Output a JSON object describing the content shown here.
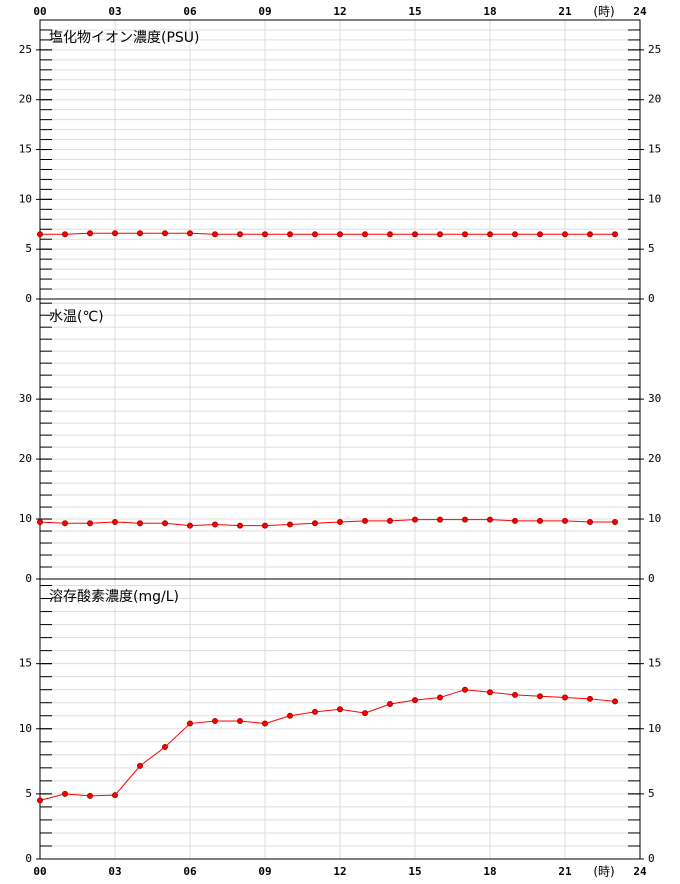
{
  "x_axis": {
    "x": [
      0,
      1,
      2,
      3,
      4,
      5,
      6,
      7,
      8,
      9,
      10,
      11,
      12,
      13,
      14,
      15,
      16,
      17,
      18,
      19,
      20,
      21,
      22,
      23
    ],
    "xlim": [
      0,
      24
    ],
    "xticks": [
      {
        "value": 0,
        "label": "00"
      },
      {
        "value": 3,
        "label": "03"
      },
      {
        "value": 6,
        "label": "06"
      },
      {
        "value": 9,
        "label": "09"
      },
      12,
      15,
      18,
      21,
      24
    ],
    "unit": "(時)"
  },
  "chart_data": [
    {
      "type": "line",
      "title": "塩化物イオン濃度(PSU)",
      "ylim": [
        0,
        28
      ],
      "yticks": [
        0,
        5,
        10,
        15,
        20,
        25
      ],
      "minor_tick_step": 1,
      "grid": true,
      "color": "#ff0000",
      "values": [
        6.5,
        6.5,
        6.6,
        6.6,
        6.6,
        6.6,
        6.6,
        6.5,
        6.5,
        6.5,
        6.5,
        6.5,
        6.5,
        6.5,
        6.5,
        6.5,
        6.5,
        6.5,
        6.5,
        6.5,
        6.5,
        6.5,
        6.5,
        6.5
      ]
    },
    {
      "type": "line",
      "title": "水温(℃)",
      "ylim": [
        0,
        46.7
      ],
      "yticks": [
        0,
        10,
        20,
        30
      ],
      "minor_tick_step": 2,
      "grid": true,
      "color": "#ff0000",
      "values": [
        9.5,
        9.3,
        9.3,
        9.5,
        9.3,
        9.3,
        8.9,
        9.1,
        8.9,
        8.9,
        9.1,
        9.3,
        9.5,
        9.7,
        9.7,
        9.9,
        9.9,
        9.9,
        9.9,
        9.7,
        9.7,
        9.7,
        9.5,
        9.5
      ]
    },
    {
      "type": "line",
      "title": "溶存酸素濃度(mg/L)",
      "ylim": [
        0,
        21.5
      ],
      "yticks": [
        0,
        5,
        10,
        15
      ],
      "minor_tick_step": 1,
      "grid": true,
      "color": "#ff0000",
      "values": [
        4.5,
        5.0,
        4.85,
        4.9,
        7.15,
        8.6,
        10.4,
        10.6,
        10.6,
        10.4,
        11.0,
        11.3,
        11.5,
        11.2,
        11.9,
        12.2,
        12.4,
        13.0,
        12.8,
        12.6,
        12.5,
        12.4,
        12.3,
        12.1
      ]
    }
  ]
}
